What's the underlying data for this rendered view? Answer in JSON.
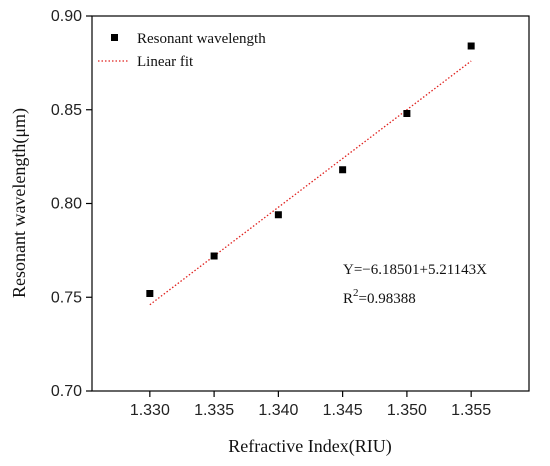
{
  "chart_data": {
    "type": "scatter",
    "xlabel": "Refractive Index(RIU)",
    "ylabel": "Resonant wavelength(μm)",
    "xlim": [
      1.3255,
      1.3595
    ],
    "ylim": [
      0.7,
      0.9
    ],
    "xticks": [
      1.33,
      1.335,
      1.34,
      1.345,
      1.35,
      1.355
    ],
    "xtick_labels": [
      "1.330",
      "1.335",
      "1.340",
      "1.345",
      "1.350",
      "1.355"
    ],
    "yticks": [
      0.7,
      0.75,
      0.8,
      0.85,
      0.9
    ],
    "ytick_labels": [
      "0.70",
      "0.75",
      "0.80",
      "0.85",
      "0.90"
    ],
    "legend_position": "top-left",
    "grid": false,
    "series": [
      {
        "name": "Resonant wavelength",
        "kind": "scatter",
        "marker": "square",
        "color": "#000000",
        "x": [
          1.33,
          1.335,
          1.34,
          1.345,
          1.35,
          1.355
        ],
        "y": [
          0.752,
          0.772,
          0.794,
          0.818,
          0.848,
          0.884
        ]
      },
      {
        "name": "Linear fit",
        "kind": "line",
        "style": "dotted",
        "color": "#e0221f",
        "x": [
          1.33,
          1.355
        ],
        "y": [
          0.746,
          0.876
        ]
      }
    ],
    "annotations": {
      "equation": "Y=−6.18501+5.21143X",
      "r2_prefix": "R",
      "r2_sup": "2",
      "r2_value": "=0.98388"
    }
  }
}
